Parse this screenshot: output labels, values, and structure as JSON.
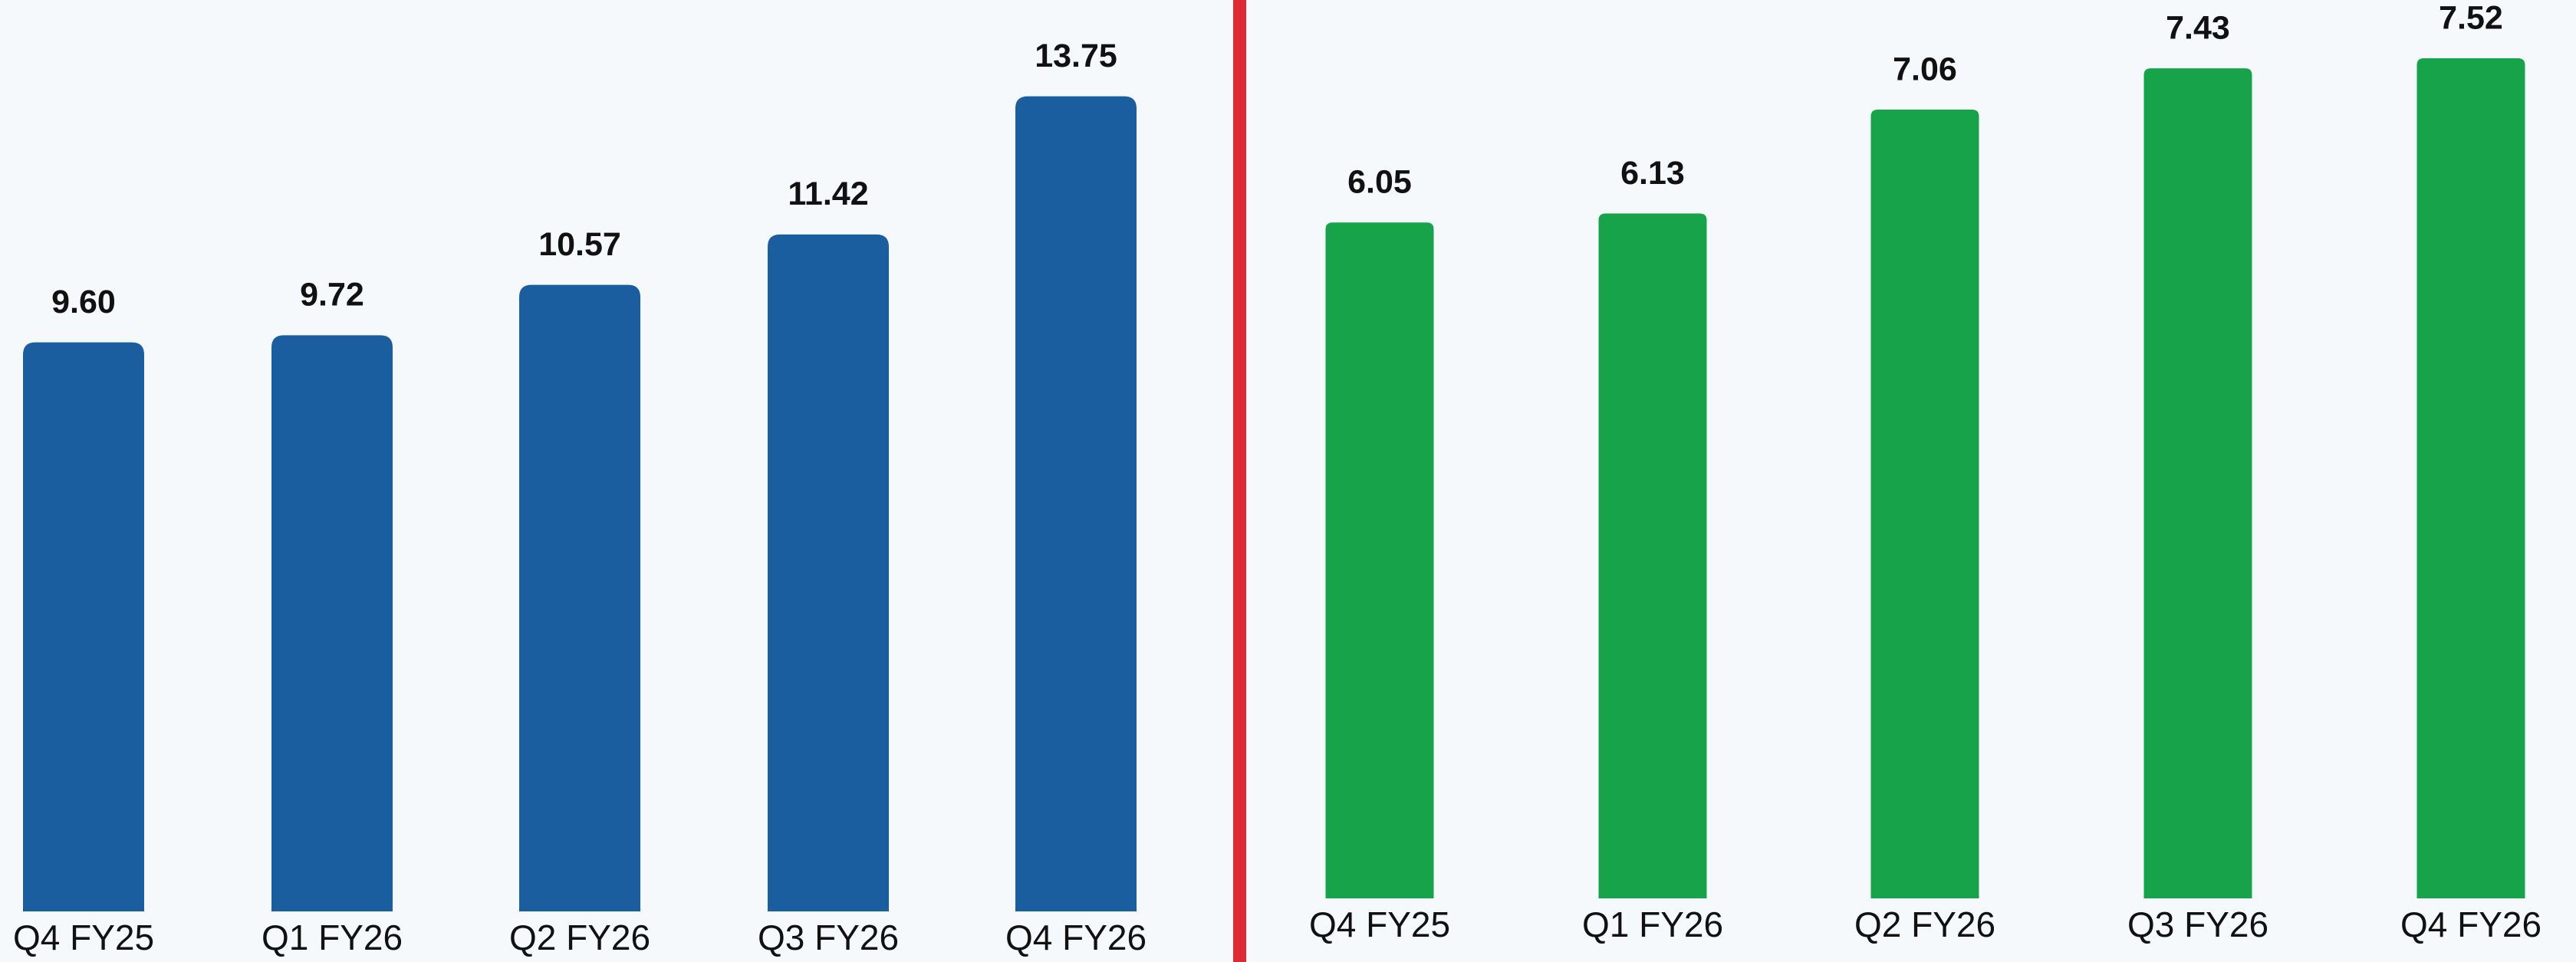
{
  "chart_data": [
    {
      "type": "bar",
      "categories": [
        "Q4 FY25",
        "Q1 FY26",
        "Q2 FY26",
        "Q3 FY26",
        "Q4 FY26"
      ],
      "values": [
        9.6,
        9.72,
        10.57,
        11.42,
        13.75
      ],
      "value_labels": [
        "9.60",
        "9.72",
        "10.57",
        "11.42",
        "13.75"
      ],
      "color": "#1b5e9f",
      "ylim": [
        0,
        15
      ]
    },
    {
      "type": "bar",
      "categories": [
        "Q4 FY25",
        "Q1 FY26",
        "Q2 FY26",
        "Q3 FY26",
        "Q4 FY26"
      ],
      "values": [
        6.05,
        6.13,
        7.06,
        7.43,
        7.52
      ],
      "value_labels": [
        "6.05",
        "6.13",
        "7.06",
        "7.43",
        "7.52"
      ],
      "color": "#17a34a",
      "ylim": [
        0,
        8
      ]
    }
  ]
}
